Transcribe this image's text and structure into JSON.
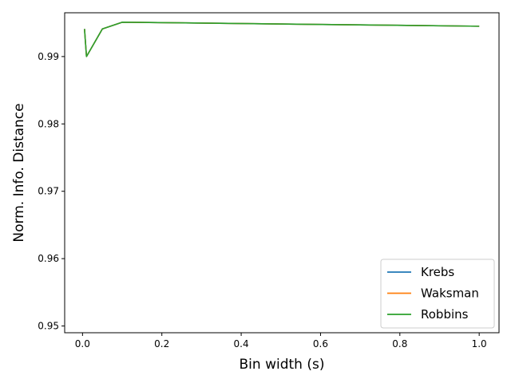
{
  "chart_data": {
    "type": "line",
    "title": "",
    "xlabel": "Bin width (s)",
    "ylabel": "Norm. Info. Distance",
    "xlim": [
      -0.045,
      1.05
    ],
    "ylim": [
      0.949,
      0.9965
    ],
    "x_ticks": [
      0.0,
      0.2,
      0.4,
      0.6,
      0.8,
      1.0
    ],
    "x_tick_labels": [
      "0.0",
      "0.2",
      "0.4",
      "0.6",
      "0.8",
      "1.0"
    ],
    "y_ticks": [
      0.95,
      0.96,
      0.97,
      0.98,
      0.99
    ],
    "y_tick_labels": [
      "0.95",
      "0.96",
      "0.97",
      "0.98",
      "0.99"
    ],
    "grid": false,
    "legend_position": "lower-right",
    "series": [
      {
        "name": "Krebs",
        "color": "#1f77b4",
        "x": [
          0.005,
          0.01,
          0.05,
          0.1,
          1.0
        ],
        "y": [
          0.9941,
          0.99,
          0.9941,
          0.9951,
          0.9945
        ]
      },
      {
        "name": "Waksman",
        "color": "#ff7f0e",
        "x": [
          0.005,
          0.01,
          0.05,
          0.1,
          1.0
        ],
        "y": [
          0.9941,
          0.99,
          0.9941,
          0.9951,
          0.9945
        ]
      },
      {
        "name": "Robbins",
        "color": "#2ca02c",
        "x": [
          0.005,
          0.01,
          0.05,
          0.1,
          1.0
        ],
        "y": [
          0.9941,
          0.99,
          0.9941,
          0.9951,
          0.9945
        ]
      }
    ]
  }
}
